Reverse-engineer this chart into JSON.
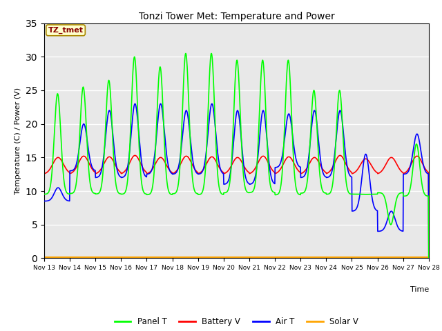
{
  "title": "Tonzi Tower Met: Temperature and Power",
  "xlabel": "Time",
  "ylabel": "Temperature (C) / Power (V)",
  "ylim": [
    0,
    35
  ],
  "colors": {
    "panel_t": "#00FF00",
    "battery_v": "#FF0000",
    "air_t": "#0000FF",
    "solar_v": "#FFA500"
  },
  "legend_labels": [
    "Panel T",
    "Battery V",
    "Air T",
    "Solar V"
  ],
  "label_box_text": "TZ_tmet",
  "label_box_facecolor": "#FFFFCC",
  "label_box_edgecolor": "#AA8800",
  "label_box_textcolor": "#880000",
  "background_color": "#E8E8E8",
  "panel_t_day_peaks": [
    24.5,
    25.5,
    26.5,
    30.0,
    28.5,
    30.5,
    30.5,
    29.5,
    29.5,
    29.5,
    25.0,
    25.0,
    9.5,
    5.0,
    17.0
  ],
  "panel_t_night_base": 9.5,
  "battery_v_base": 12.5,
  "battery_v_peaks": [
    15.0,
    15.2,
    15.1,
    15.3,
    15.0,
    15.2,
    15.1,
    15.0,
    15.2,
    15.1,
    15.0,
    15.3,
    14.8,
    15.0,
    15.2
  ],
  "air_t_day_peaks": [
    10.5,
    20.0,
    22.0,
    23.0,
    23.0,
    22.0,
    23.0,
    22.0,
    22.0,
    21.5,
    22.0,
    22.0,
    15.5,
    7.0,
    18.5
  ],
  "air_t_night_vals": [
    8.5,
    13.0,
    12.0,
    12.0,
    12.5,
    12.5,
    12.5,
    11.0,
    11.0,
    13.5,
    12.0,
    12.0,
    7.0,
    4.0,
    12.5
  ],
  "solar_v_value": 0.15,
  "x_tick_labels": [
    "Nov 13",
    "Nov 14",
    "Nov 15",
    "Nov 16",
    "Nov 17",
    "Nov 18",
    "Nov 19",
    "Nov 20",
    "Nov 21",
    "Nov 22",
    "Nov 23",
    "Nov 24",
    "Nov 25",
    "Nov 26",
    "Nov 27",
    "Nov 28"
  ],
  "yticks": [
    0,
    5,
    10,
    15,
    20,
    25,
    30,
    35
  ]
}
